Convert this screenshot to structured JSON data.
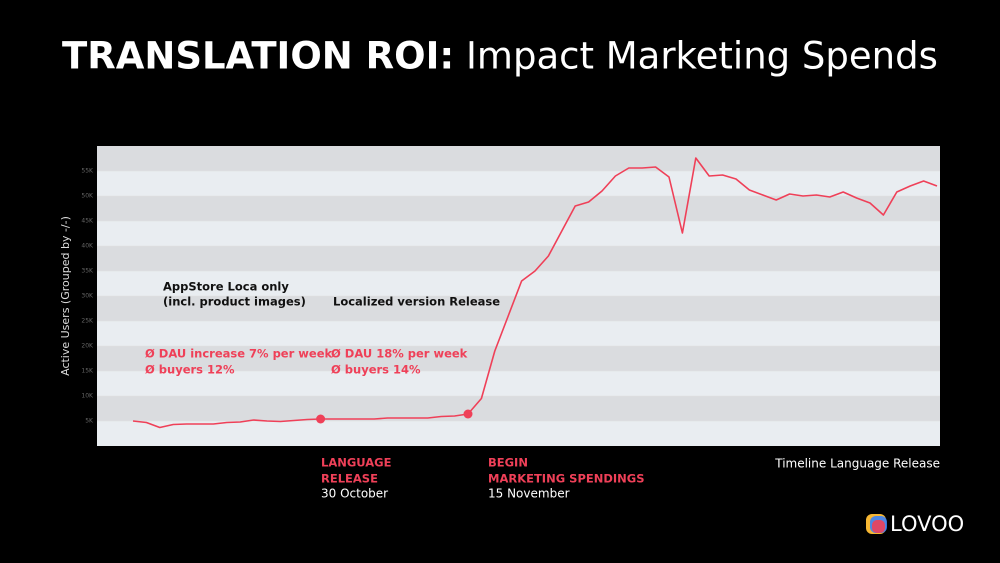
{
  "chart_data": {
    "type": "line",
    "title": "TRANSLATION ROI:",
    "subtitle": "Impact Marketing Spends",
    "y_label": "Active Users (Grouped by -/-)",
    "x_label": "Timeline Language Release",
    "categories": [
      null,
      null,
      null,
      null,
      null,
      null,
      null,
      null,
      null,
      null,
      null,
      null,
      null,
      null,
      null,
      null,
      null,
      null,
      null,
      null,
      null,
      null,
      null,
      null,
      null,
      null,
      null,
      null,
      null,
      null,
      null,
      null,
      null,
      null,
      null,
      null,
      null,
      null,
      null,
      null,
      null,
      null,
      null,
      null,
      null,
      null,
      null,
      null,
      null,
      null,
      null,
      null,
      null,
      null,
      null,
      null,
      null,
      null,
      null,
      null,
      null
    ],
    "series": [
      {
        "name": "Active Users",
        "color": "#ef4058",
        "values": [
          5000,
          4700,
          3700,
          4300,
          4400,
          4400,
          4400,
          4700,
          4800,
          5200,
          5000,
          4900,
          5100,
          5300,
          5400,
          5400,
          5400,
          5400,
          5400,
          5600,
          5600,
          5600,
          5600,
          5900,
          6000,
          6400,
          9500,
          19000,
          26000,
          33000,
          35000,
          38000,
          43000,
          48000,
          48800,
          51000,
          54000,
          55600,
          55600,
          55800,
          53800,
          42600,
          57600,
          54000,
          54200,
          53400,
          51200,
          50200,
          49200,
          50400,
          50000,
          50200,
          49800,
          50800,
          49600,
          48600,
          46200,
          50800,
          52000,
          53000,
          52000
        ]
      }
    ],
    "ylim": [
      0,
      60000
    ],
    "yticks": [
      {
        "value": 5000,
        "label": "5K"
      },
      {
        "value": 10000,
        "label": "10K"
      },
      {
        "value": 15000,
        "label": "15K"
      },
      {
        "value": 20000,
        "label": "20K"
      },
      {
        "value": 25000,
        "label": "25K"
      },
      {
        "value": 30000,
        "label": "30K"
      },
      {
        "value": 35000,
        "label": "35K"
      },
      {
        "value": 40000,
        "label": "40K"
      },
      {
        "value": 45000,
        "label": "45K"
      },
      {
        "value": 50000,
        "label": "50K"
      },
      {
        "value": 55000,
        "label": "55K"
      }
    ],
    "annotations": {
      "appstore_1": "AppStore Loca only",
      "appstore_2": "(incl. product images)",
      "localized": "Localized version Release",
      "dau_1": "Ø DAU increase 7% per week",
      "buyers_1": "Ø buyers 12%",
      "dau_2": "Ø DAU 18% per week",
      "buyers_2": "Ø buyers 14%",
      "release_1": "LANGUAGE",
      "release_2": "RELEASE",
      "release_date": "30 October",
      "marketing_1": "BEGIN",
      "marketing_2": "MARKETING SPENDINGS",
      "marketing_date": "15 November"
    },
    "logo": "LOVOO"
  }
}
